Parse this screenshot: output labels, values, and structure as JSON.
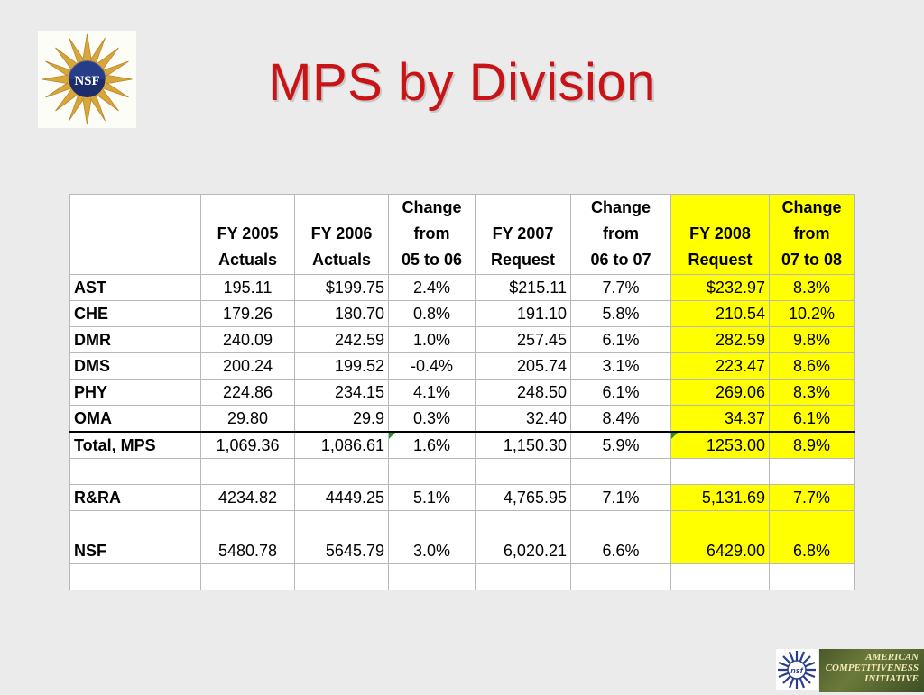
{
  "title": "MPS by Division",
  "logo_text": "NSF",
  "headers": [
    "",
    "FY 2005\nActuals",
    "FY 2006\nActuals",
    "Change\nfrom\n05 to 06",
    "FY 2007\nRequest",
    "Change\nfrom\n06 to 07",
    "FY 2008\nRequest",
    "Change\nfrom\n07 to 08"
  ],
  "rows": [
    {
      "label": "AST",
      "cells": [
        "195.11",
        "$199.75",
        "2.4%",
        "$215.11",
        "7.7%",
        "$232.97",
        "8.3%"
      ]
    },
    {
      "label": "CHE",
      "cells": [
        "179.26",
        "180.70",
        "0.8%",
        "191.10",
        "5.8%",
        "210.54",
        "10.2%"
      ]
    },
    {
      "label": "DMR",
      "cells": [
        "240.09",
        "242.59",
        "1.0%",
        "257.45",
        "6.1%",
        "282.59",
        "9.8%"
      ]
    },
    {
      "label": "DMS",
      "cells": [
        "200.24",
        "199.52",
        "-0.4%",
        "205.74",
        "3.1%",
        "223.47",
        "8.6%"
      ]
    },
    {
      "label": "PHY",
      "cells": [
        "224.86",
        "234.15",
        "4.1%",
        "248.50",
        "6.1%",
        "269.06",
        "8.3%"
      ]
    },
    {
      "label": "OMA",
      "cells": [
        "29.80",
        "29.9",
        "0.3%",
        "32.40",
        "8.4%",
        "34.37",
        "6.1%"
      ]
    },
    {
      "label": "Total, MPS",
      "cells": [
        "1,069.36",
        "1,086.61",
        "1.6%",
        "1,150.30",
        "5.9%",
        "1253.00",
        "8.9%"
      ]
    },
    {
      "label": "R&RA",
      "cells": [
        "4234.82",
        "4449.25",
        "5.1%",
        "4,765.95",
        "7.1%",
        "5,131.69",
        "7.7%"
      ]
    },
    {
      "label": "NSF",
      "cells": [
        "5480.78",
        "5645.79",
        "3.0%",
        "6,020.21",
        "6.6%",
        "6429.00",
        "6.8%"
      ]
    }
  ],
  "aci_logo": {
    "line1": "AMERICAN",
    "line2": "COMPETITIVENESS",
    "line3": "INITIATIVE"
  },
  "small_logo_text": "nsf",
  "highlight_color": "#ffff00",
  "title_color": "#c81417"
}
